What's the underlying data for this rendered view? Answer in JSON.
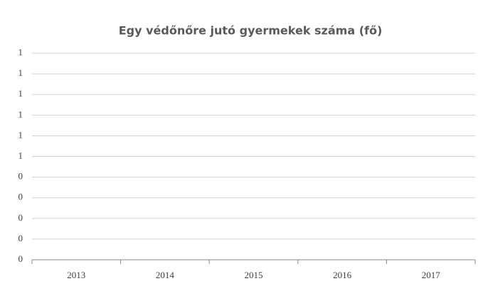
{
  "chart_data": {
    "type": "line",
    "title": "Egy védőnőre jutó gyermekek száma (fő)",
    "categories": [
      "2013",
      "2014",
      "2015",
      "2016",
      "2017"
    ],
    "ylim": [
      0,
      1
    ],
    "yticks": [
      0,
      {
        "value": 0.1,
        "label": "0"
      },
      {
        "value": 0.2,
        "label": "0"
      },
      {
        "value": 0.3,
        "label": "0"
      },
      {
        "value": 0.4,
        "label": "0"
      },
      {
        "value": 0.5,
        "label": "1"
      },
      {
        "value": 0.6,
        "label": "1"
      },
      {
        "value": 0.7,
        "label": "1"
      },
      {
        "value": 0.8,
        "label": "1"
      },
      {
        "value": 0.9,
        "label": "1"
      },
      1
    ],
    "grid": true
  }
}
